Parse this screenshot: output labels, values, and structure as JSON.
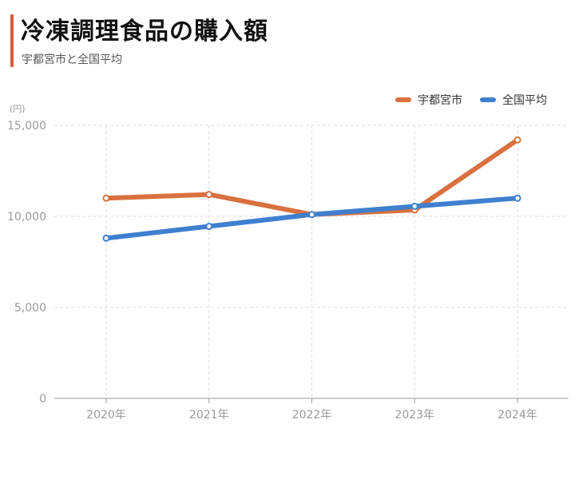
{
  "header": {
    "title": "冷凍調理食品の購入額",
    "subtitle": "宇都宮市と全国平均",
    "unit": "(円)"
  },
  "legend": [
    {
      "label": "宇都宮市",
      "color": "#d9703f"
    },
    {
      "label": "全国平均",
      "color": "#3f7fcf"
    }
  ],
  "chart_data": {
    "type": "line",
    "categories": [
      "2020年",
      "2021年",
      "2022年",
      "2023年",
      "2024年"
    ],
    "series": [
      {
        "name": "宇都宮市",
        "color": "#d9703f",
        "values": [
          11000,
          11200,
          10100,
          10350,
          14200
        ]
      },
      {
        "name": "全国平均",
        "color": "#3f7fcf",
        "values": [
          8800,
          9450,
          10100,
          10550,
          11000
        ]
      }
    ],
    "ylim": [
      0,
      15000
    ],
    "yticks": [
      0,
      5000,
      10000,
      15000
    ],
    "ytick_labels": [
      "0",
      "5,000",
      "10,000",
      "15,000"
    ],
    "grid": true,
    "legend_position": "top-right"
  }
}
